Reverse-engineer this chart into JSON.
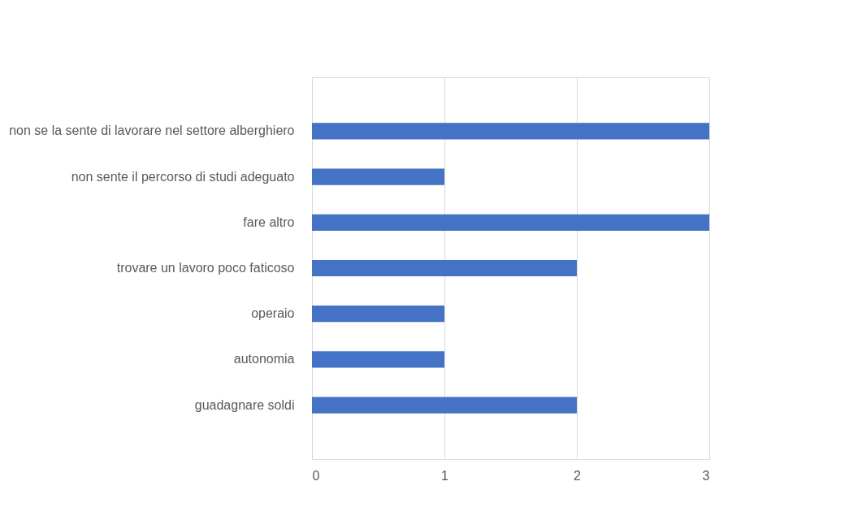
{
  "chart_data": {
    "type": "bar",
    "orientation": "horizontal",
    "categories": [
      "non se la sente di lavorare nel settore alberghiero",
      "non sente il percorso di studi adeguato",
      "fare altro",
      "trovare un lavoro poco faticoso",
      "operaio",
      "autonomia",
      "guadagnare soldi"
    ],
    "values": [
      3,
      1,
      3,
      2,
      1,
      1,
      2
    ],
    "color": "#4472c4",
    "xlim": [
      0,
      3
    ],
    "xticks": [
      0,
      1,
      2,
      3
    ],
    "grid": "x"
  }
}
